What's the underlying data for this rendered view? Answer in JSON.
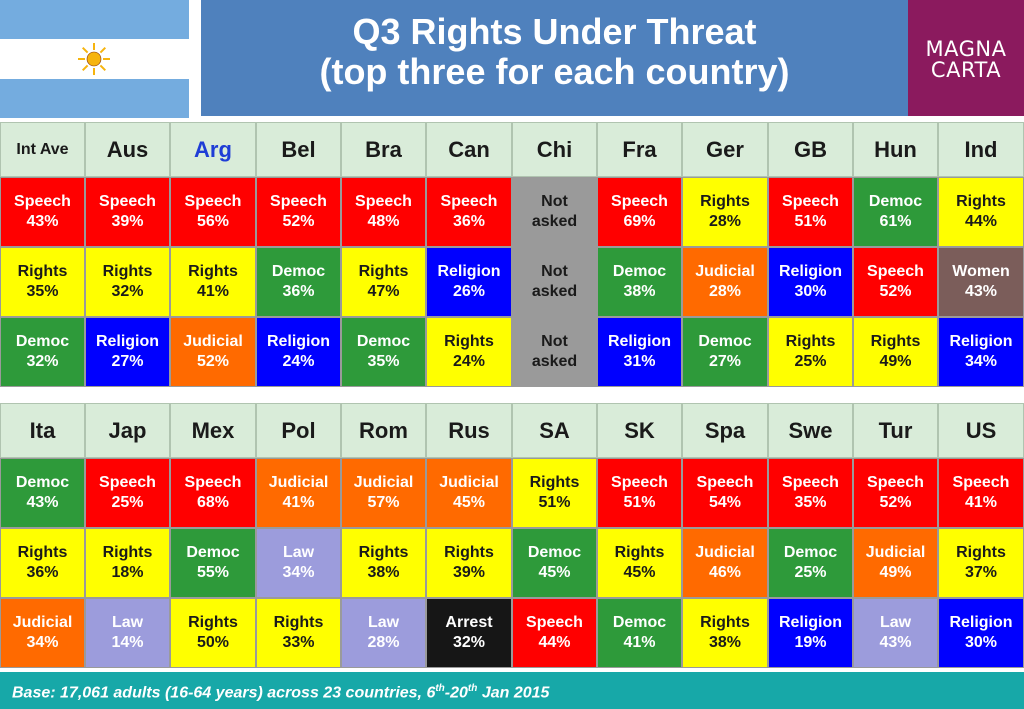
{
  "header": {
    "title_line1": "Q3 Rights Under Threat",
    "title_line2": "(top three for each country)",
    "logo_line1": "MAGNA",
    "logo_line2": "CARTA"
  },
  "colors": {
    "Speech": "#ff0000",
    "Rights": "#ffff00",
    "Democ": "#2e9a3a",
    "Religion": "#0000ff",
    "Judicial": "#ff6a00",
    "Law": "#9c9cdc",
    "Women": "#7b5d5a",
    "Arrest": "#161616",
    "Not": "#9a9a9a",
    "header_bg": "#d9ecd9",
    "title_bg": "#4f81bd",
    "logo_bg": "#8b1a5e",
    "footer_bg": "#17a8a8"
  },
  "chart_data": {
    "type": "table",
    "title": "Q3 Rights Under Threat",
    "subtitle": "(top three for each country)",
    "tables": [
      {
        "headers": [
          "Int Ave",
          "Aus",
          "Arg",
          "Bel",
          "Bra",
          "Can",
          "Chi",
          "Fra",
          "Ger",
          "GB",
          "Hun",
          "Ind"
        ],
        "rows": [
          [
            [
              "Speech",
              "43%"
            ],
            [
              "Speech",
              "39%"
            ],
            [
              "Speech",
              "56%"
            ],
            [
              "Speech",
              "52%"
            ],
            [
              "Speech",
              "48%"
            ],
            [
              "Speech",
              "36%"
            ],
            [
              "Not",
              "asked"
            ],
            [
              "Speech",
              "69%"
            ],
            [
              "Rights",
              "28%"
            ],
            [
              "Speech",
              "51%"
            ],
            [
              "Democ",
              "61%"
            ],
            [
              "Rights",
              "44%"
            ]
          ],
          [
            [
              "Rights",
              "35%"
            ],
            [
              "Rights",
              "32%"
            ],
            [
              "Rights",
              "41%"
            ],
            [
              "Democ",
              "36%"
            ],
            [
              "Rights",
              "47%"
            ],
            [
              "Religion",
              "26%"
            ],
            [
              "Not",
              "asked"
            ],
            [
              "Democ",
              "38%"
            ],
            [
              "Judicial",
              "28%"
            ],
            [
              "Religion",
              "30%"
            ],
            [
              "Speech",
              "52%"
            ],
            [
              "Women",
              "43%"
            ]
          ],
          [
            [
              "Democ",
              "32%"
            ],
            [
              "Religion",
              "27%"
            ],
            [
              "Judicial",
              "52%"
            ],
            [
              "Religion",
              "24%"
            ],
            [
              "Democ",
              "35%"
            ],
            [
              "Rights",
              "24%"
            ],
            [
              "Not",
              "asked"
            ],
            [
              "Religion",
              "31%"
            ],
            [
              "Democ",
              "27%"
            ],
            [
              "Rights",
              "25%"
            ],
            [
              "Rights",
              "49%"
            ],
            [
              "Religion",
              "34%"
            ]
          ]
        ]
      },
      {
        "headers": [
          "Ita",
          "Jap",
          "Mex",
          "Pol",
          "Rom",
          "Rus",
          "SA",
          "SK",
          "Spa",
          "Swe",
          "Tur",
          "US"
        ],
        "rows": [
          [
            [
              "Democ",
              "43%"
            ],
            [
              "Speech",
              "25%"
            ],
            [
              "Speech",
              "68%"
            ],
            [
              "Judicial",
              "41%"
            ],
            [
              "Judicial",
              "57%"
            ],
            [
              "Judicial",
              "45%"
            ],
            [
              "Rights",
              "51%"
            ],
            [
              "Speech",
              "51%"
            ],
            [
              "Speech",
              "54%"
            ],
            [
              "Speech",
              "35%"
            ],
            [
              "Speech",
              "52%"
            ],
            [
              "Speech",
              "41%"
            ]
          ],
          [
            [
              "Rights",
              "36%"
            ],
            [
              "Rights",
              "18%"
            ],
            [
              "Democ",
              "55%"
            ],
            [
              "Law",
              "34%"
            ],
            [
              "Rights",
              "38%"
            ],
            [
              "Rights",
              "39%"
            ],
            [
              "Democ",
              "45%"
            ],
            [
              "Rights",
              "45%"
            ],
            [
              "Judicial",
              "46%"
            ],
            [
              "Democ",
              "25%"
            ],
            [
              "Judicial",
              "49%"
            ],
            [
              "Rights",
              "37%"
            ]
          ],
          [
            [
              "Judicial",
              "34%"
            ],
            [
              "Law",
              "14%"
            ],
            [
              "Rights",
              "50%"
            ],
            [
              "Rights",
              "33%"
            ],
            [
              "Law",
              "28%"
            ],
            [
              "Arrest",
              "32%"
            ],
            [
              "Speech",
              "44%"
            ],
            [
              "Democ",
              "41%"
            ],
            [
              "Rights",
              "38%"
            ],
            [
              "Religion",
              "19%"
            ],
            [
              "Law",
              "43%"
            ],
            [
              "Religion",
              "30%"
            ]
          ]
        ]
      }
    ]
  },
  "footer": {
    "base_prefix": "Base: 17,061 adults (16-64 years) across 23 countries, 6",
    "sup1": "th",
    "mid": "-20",
    "sup2": "th",
    "suffix": " Jan 2015"
  }
}
